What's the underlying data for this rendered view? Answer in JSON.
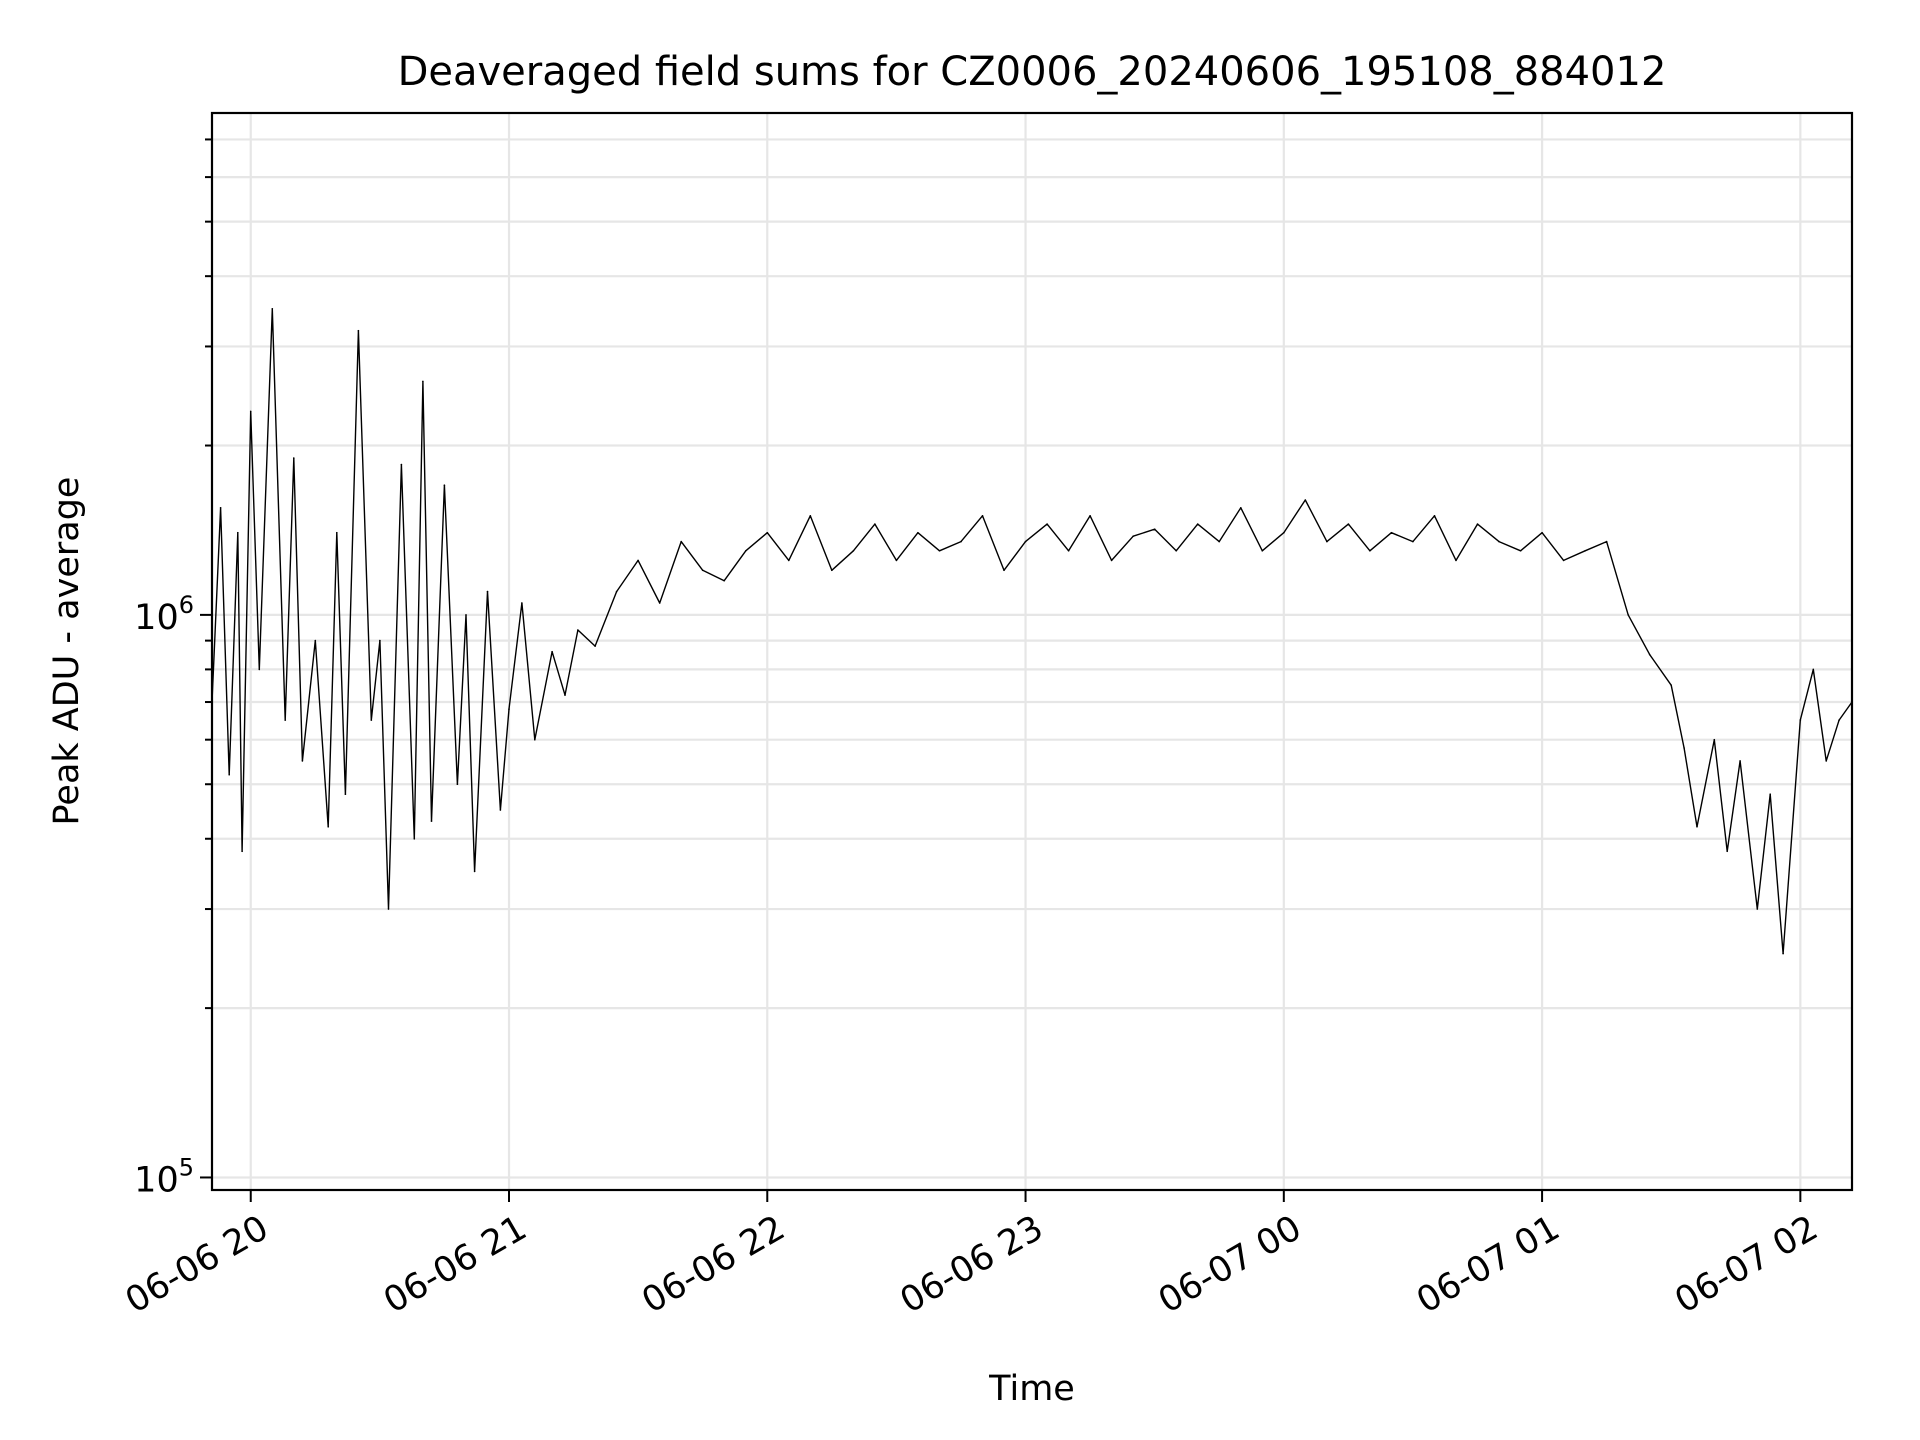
{
  "chart_data": {
    "type": "line",
    "title": "Deaveraged field sums for CZ0006_20240606_195108_884012",
    "xlabel": "Time",
    "ylabel": "Peak ADU - average",
    "yscale": "log",
    "ylim": [
      95000,
      7800000
    ],
    "xlim": [
      "2024-06-06 19:51",
      "2024-06-07 02:12"
    ],
    "grid": true,
    "legend": "none",
    "line_color": "#000000",
    "x_ticks": [
      {
        "value": "2024-06-06 20:00",
        "label": "06-06 20"
      },
      {
        "value": "2024-06-06 21:00",
        "label": "06-06 21"
      },
      {
        "value": "2024-06-06 22:00",
        "label": "06-06 22"
      },
      {
        "value": "2024-06-06 23:00",
        "label": "06-06 23"
      },
      {
        "value": "2024-06-07 00:00",
        "label": "06-07 00"
      },
      {
        "value": "2024-06-07 01:00",
        "label": "06-07 01"
      },
      {
        "value": "2024-06-07 02:00",
        "label": "06-07 02"
      }
    ],
    "y_ticks": [
      {
        "value": 100000,
        "base": "10",
        "exp": "5"
      },
      {
        "value": 1000000,
        "base": "10",
        "exp": "6"
      }
    ],
    "series": [
      {
        "x": [
          "2024-06-06 19:51",
          "2024-06-06 19:53",
          "2024-06-06 19:55",
          "2024-06-06 19:57",
          "2024-06-06 19:58",
          "2024-06-06 20:00",
          "2024-06-06 20:02",
          "2024-06-06 20:05",
          "2024-06-06 20:08",
          "2024-06-06 20:10",
          "2024-06-06 20:12",
          "2024-06-06 20:15",
          "2024-06-06 20:18",
          "2024-06-06 20:20",
          "2024-06-06 20:22",
          "2024-06-06 20:25",
          "2024-06-06 20:28",
          "2024-06-06 20:30",
          "2024-06-06 20:32",
          "2024-06-06 20:35",
          "2024-06-06 20:38",
          "2024-06-06 20:40",
          "2024-06-06 20:42",
          "2024-06-06 20:45",
          "2024-06-06 20:48",
          "2024-06-06 20:50",
          "2024-06-06 20:52",
          "2024-06-06 20:55",
          "2024-06-06 20:58",
          "2024-06-06 21:00",
          "2024-06-06 21:03",
          "2024-06-06 21:06",
          "2024-06-06 21:10",
          "2024-06-06 21:13",
          "2024-06-06 21:16",
          "2024-06-06 21:20",
          "2024-06-06 21:25",
          "2024-06-06 21:30",
          "2024-06-06 21:35",
          "2024-06-06 21:40",
          "2024-06-06 21:45",
          "2024-06-06 21:50",
          "2024-06-06 21:55",
          "2024-06-06 22:00",
          "2024-06-06 22:05",
          "2024-06-06 22:10",
          "2024-06-06 22:15",
          "2024-06-06 22:20",
          "2024-06-06 22:25",
          "2024-06-06 22:30",
          "2024-06-06 22:35",
          "2024-06-06 22:40",
          "2024-06-06 22:45",
          "2024-06-06 22:50",
          "2024-06-06 22:55",
          "2024-06-06 23:00",
          "2024-06-06 23:05",
          "2024-06-06 23:10",
          "2024-06-06 23:15",
          "2024-06-06 23:20",
          "2024-06-06 23:25",
          "2024-06-06 23:30",
          "2024-06-06 23:35",
          "2024-06-06 23:40",
          "2024-06-06 23:45",
          "2024-06-06 23:50",
          "2024-06-06 23:55",
          "2024-06-07 00:00",
          "2024-06-07 00:05",
          "2024-06-07 00:10",
          "2024-06-07 00:15",
          "2024-06-07 00:20",
          "2024-06-07 00:25",
          "2024-06-07 00:30",
          "2024-06-07 00:35",
          "2024-06-07 00:40",
          "2024-06-07 00:45",
          "2024-06-07 00:50",
          "2024-06-07 00:55",
          "2024-06-07 01:00",
          "2024-06-07 01:05",
          "2024-06-07 01:10",
          "2024-06-07 01:15",
          "2024-06-07 01:20",
          "2024-06-07 01:25",
          "2024-06-07 01:30",
          "2024-06-07 01:33",
          "2024-06-07 01:36",
          "2024-06-07 01:40",
          "2024-06-07 01:43",
          "2024-06-07 01:46",
          "2024-06-07 01:50",
          "2024-06-07 01:53",
          "2024-06-07 01:56",
          "2024-06-07 02:00",
          "2024-06-07 02:03",
          "2024-06-07 02:06",
          "2024-06-07 02:09",
          "2024-06-07 02:12"
        ],
        "y": [
          700000,
          1550000,
          520000,
          1400000,
          380000,
          2300000,
          800000,
          3500000,
          650000,
          1900000,
          550000,
          900000,
          420000,
          1400000,
          480000,
          3200000,
          650000,
          900000,
          300000,
          1850000,
          400000,
          2600000,
          430000,
          1700000,
          500000,
          1000000,
          350000,
          1100000,
          450000,
          680000,
          1050000,
          600000,
          860000,
          720000,
          940000,
          880000,
          1100000,
          1250000,
          1050000,
          1350000,
          1200000,
          1150000,
          1300000,
          1400000,
          1250000,
          1500000,
          1200000,
          1300000,
          1450000,
          1250000,
          1400000,
          1300000,
          1350000,
          1500000,
          1200000,
          1350000,
          1450000,
          1300000,
          1500000,
          1250000,
          1380000,
          1420000,
          1300000,
          1450000,
          1350000,
          1550000,
          1300000,
          1400000,
          1600000,
          1350000,
          1450000,
          1300000,
          1400000,
          1350000,
          1500000,
          1250000,
          1450000,
          1350000,
          1300000,
          1400000,
          1250000,
          1300000,
          1350000,
          1000000,
          850000,
          750000,
          580000,
          420000,
          600000,
          380000,
          550000,
          300000,
          480000,
          250000,
          650000,
          800000,
          550000,
          650000,
          700000
        ]
      }
    ]
  }
}
